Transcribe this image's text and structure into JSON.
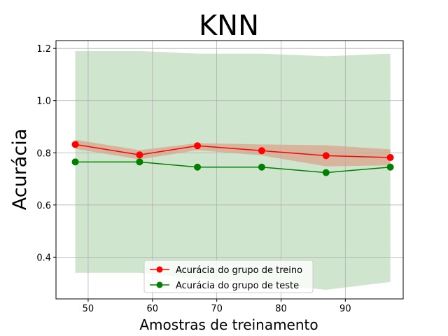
{
  "chart_data": {
    "type": "line",
    "title": "KNN",
    "xlabel": "Amostras de treinamento",
    "ylabel": "Acurácia",
    "xlim": [
      45,
      99
    ],
    "ylim": [
      0.24,
      1.23
    ],
    "xticks": [
      50,
      60,
      70,
      80,
      90
    ],
    "xtick_labels": [
      "50",
      "60",
      "70",
      "80",
      "90"
    ],
    "yticks": [
      0.4,
      0.6,
      0.8,
      1.0,
      1.2
    ],
    "ytick_labels": [
      "0.4",
      "0.6",
      "0.8",
      "1.0",
      "1.2"
    ],
    "grid": true,
    "legend_position": "lower center",
    "x": [
      48,
      58,
      67,
      77,
      87,
      97
    ],
    "series": [
      {
        "name": "Acurácia do grupo de treino",
        "color": "#ff0000",
        "marker": "circle",
        "values": [
          0.832,
          0.792,
          0.827,
          0.808,
          0.789,
          0.782
        ],
        "band_lower": [
          0.815,
          0.775,
          0.81,
          0.79,
          0.748,
          0.752
        ],
        "band_upper": [
          0.85,
          0.81,
          0.837,
          0.832,
          0.829,
          0.813
        ],
        "band_color": "#d9a48c"
      },
      {
        "name": "Acurácia do grupo de teste",
        "color": "#008000",
        "marker": "circle",
        "values": [
          0.765,
          0.765,
          0.745,
          0.745,
          0.724,
          0.745
        ],
        "band_lower": [
          0.34,
          0.34,
          0.318,
          0.3,
          0.275,
          0.305
        ],
        "band_upper": [
          1.19,
          1.19,
          1.18,
          1.18,
          1.17,
          1.18
        ],
        "band_color": "#cfe5cd"
      }
    ]
  }
}
